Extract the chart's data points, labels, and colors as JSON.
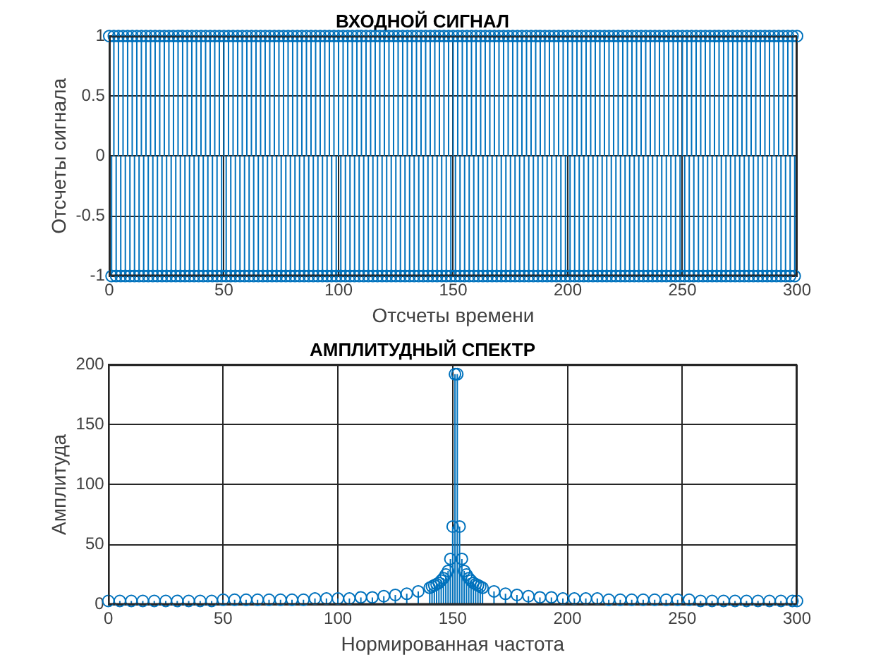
{
  "chart_data": [
    {
      "type": "lollipop",
      "title": "ВХОДНОЙ СИГНАЛ",
      "xlabel": "Отсчеты времени",
      "ylabel": "Отсчеты сигнала",
      "color": "#0072bd",
      "marker": "circle",
      "grid": true,
      "legend": false,
      "xlim": [
        0,
        300
      ],
      "xticks": [
        0,
        50,
        100,
        150,
        200,
        250,
        300
      ],
      "ylim": [
        -1,
        1
      ],
      "yticks": [
        -1,
        {
          "value": -0.5,
          "label": "-0.5"
        },
        0,
        0.5,
        1
      ],
      "x": [
        0,
        1,
        2,
        3,
        4,
        5,
        6,
        7,
        8,
        9,
        10,
        11,
        12,
        13,
        14,
        15,
        16,
        17,
        18,
        19,
        20,
        21,
        22,
        23,
        24,
        25,
        26,
        27,
        28,
        29,
        30,
        31,
        32,
        33,
        34,
        35,
        36,
        37,
        38,
        39,
        40,
        41,
        42,
        43,
        44,
        45,
        46,
        47,
        48,
        49,
        50,
        51,
        52,
        53,
        54,
        55,
        56,
        57,
        58,
        59,
        60,
        61,
        62,
        63,
        64,
        65,
        66,
        67,
        68,
        69,
        70,
        71,
        72,
        73,
        74,
        75,
        76,
        77,
        78,
        79,
        80,
        81,
        82,
        83,
        84,
        85,
        86,
        87,
        88,
        89,
        90,
        91,
        92,
        93,
        94,
        95,
        96,
        97,
        98,
        99,
        100,
        101,
        102,
        103,
        104,
        105,
        106,
        107,
        108,
        109,
        110,
        111,
        112,
        113,
        114,
        115,
        116,
        117,
        118,
        119,
        120,
        121,
        122,
        123,
        124,
        125,
        126,
        127,
        128,
        129,
        130,
        131,
        132,
        133,
        134,
        135,
        136,
        137,
        138,
        139,
        140,
        141,
        142,
        143,
        144,
        145,
        146,
        147,
        148,
        149,
        150,
        151,
        152,
        153,
        154,
        155,
        156,
        157,
        158,
        159,
        160,
        161,
        162,
        163,
        164,
        165,
        166,
        167,
        168,
        169,
        170,
        171,
        172,
        173,
        174,
        175,
        176,
        177,
        178,
        179,
        180,
        181,
        182,
        183,
        184,
        185,
        186,
        187,
        188,
        189,
        190,
        191,
        192,
        193,
        194,
        195,
        196,
        197,
        198,
        199,
        200,
        201,
        202,
        203,
        204,
        205,
        206,
        207,
        208,
        209,
        210,
        211,
        212,
        213,
        214,
        215,
        216,
        217,
        218,
        219,
        220,
        221,
        222,
        223,
        224,
        225,
        226,
        227,
        228,
        229,
        230,
        231,
        232,
        233,
        234,
        235,
        236,
        237,
        238,
        239,
        240,
        241,
        242,
        243,
        244,
        245,
        246,
        247,
        248,
        249,
        250,
        251,
        252,
        253,
        254,
        255,
        256,
        257,
        258,
        259,
        260,
        261,
        262,
        263,
        264,
        265,
        266,
        267,
        268,
        269,
        270,
        271,
        272,
        273,
        274,
        275,
        276,
        277,
        278,
        279,
        280,
        281,
        282,
        283,
        284,
        285,
        286,
        287,
        288,
        289,
        290,
        291,
        292,
        293,
        294,
        295,
        296,
        297,
        298,
        299,
        300
      ],
      "values": [
        1,
        -1,
        1,
        -1,
        1,
        -1,
        1,
        -1,
        1,
        -1,
        1,
        -1,
        1,
        -1,
        1,
        -1,
        1,
        -1,
        1,
        -1,
        1,
        -1,
        1,
        -1,
        1,
        -1,
        1,
        -1,
        1,
        -1,
        1,
        -1,
        1,
        -1,
        1,
        -1,
        1,
        -1,
        1,
        -1,
        1,
        -1,
        1,
        -1,
        1,
        -1,
        1,
        -1,
        1,
        -1,
        1,
        -1,
        1,
        -1,
        1,
        -1,
        1,
        -1,
        1,
        -1,
        1,
        -1,
        1,
        -1,
        1,
        -1,
        1,
        -1,
        1,
        -1,
        1,
        -1,
        1,
        -1,
        1,
        -1,
        1,
        -1,
        1,
        -1,
        1,
        -1,
        1,
        -1,
        1,
        -1,
        1,
        -1,
        1,
        -1,
        1,
        -1,
        1,
        -1,
        1,
        -1,
        1,
        -1,
        1,
        -1,
        1,
        -1,
        1,
        -1,
        1,
        -1,
        1,
        -1,
        1,
        -1,
        1,
        -1,
        1,
        -1,
        1,
        -1,
        1,
        -1,
        1,
        -1,
        1,
        -1,
        1,
        -1,
        1,
        -1,
        1,
        -1,
        1,
        -1,
        1,
        -1,
        1,
        -1,
        1,
        -1,
        1,
        -1,
        1,
        -1,
        1,
        -1,
        1,
        -1,
        1,
        -1,
        1,
        -1,
        1,
        -1,
        1,
        -1,
        1,
        -1,
        1,
        -1,
        1,
        -1,
        1,
        -1,
        1,
        -1,
        1,
        -1,
        1,
        -1,
        1,
        -1,
        1,
        -1,
        1,
        -1,
        1,
        -1,
        1,
        -1,
        1,
        -1,
        1,
        -1,
        1,
        -1,
        1,
        -1,
        1,
        -1,
        1,
        -1,
        1,
        -1,
        1,
        -1,
        1,
        -1,
        1,
        -1,
        1,
        -1,
        1,
        -1,
        1,
        -1,
        1,
        -1,
        1,
        -1,
        1,
        -1,
        1,
        -1,
        1,
        -1,
        1,
        -1,
        1,
        -1,
        1,
        -1,
        1,
        -1,
        1,
        -1,
        1,
        -1,
        1,
        -1,
        1,
        -1,
        1,
        -1,
        1,
        -1,
        1,
        -1,
        1,
        -1,
        1,
        -1,
        1,
        -1,
        1,
        -1,
        1,
        -1,
        1,
        -1,
        1,
        -1,
        1,
        -1,
        1,
        -1,
        1,
        -1,
        1,
        -1,
        1,
        -1,
        1,
        -1,
        1,
        -1,
        1,
        -1,
        1,
        -1,
        1,
        -1,
        1,
        -1,
        1,
        -1,
        1,
        -1,
        1,
        -1,
        1,
        -1,
        1,
        -1,
        1,
        -1,
        1,
        -1,
        1,
        -1,
        1,
        -1,
        1,
        -1,
        1,
        -1,
        1,
        -1,
        1,
        -1,
        1,
        -1,
        1,
        -1,
        1
      ]
    },
    {
      "type": "lollipop",
      "title": "АМПЛИТУДНЫЙ СПЕКТР",
      "xlabel": "Нормированная частота",
      "ylabel": "Амплитуда",
      "color": "#0072bd",
      "marker": "circle",
      "grid": true,
      "legend": false,
      "xlim": [
        0,
        300
      ],
      "xticks": [
        0,
        50,
        100,
        150,
        200,
        250,
        300
      ],
      "ylim": [
        0,
        200
      ],
      "yticks": [
        0,
        50,
        100,
        150,
        200
      ],
      "x": [
        0,
        5,
        10,
        15,
        20,
        25,
        30,
        35,
        40,
        45,
        50,
        55,
        60,
        65,
        70,
        75,
        80,
        85,
        90,
        95,
        100,
        105,
        110,
        115,
        120,
        125,
        130,
        135,
        140,
        141,
        142,
        143,
        144,
        145,
        146,
        147,
        148,
        149,
        150,
        151,
        152,
        153,
        154,
        155,
        156,
        157,
        158,
        159,
        160,
        161,
        162,
        163,
        168,
        173,
        178,
        183,
        188,
        193,
        198,
        203,
        208,
        213,
        218,
        223,
        228,
        233,
        238,
        243,
        248,
        253,
        258,
        263,
        268,
        273,
        278,
        283,
        288,
        293,
        298,
        300
      ],
      "values": [
        3,
        3,
        3,
        3,
        3,
        3,
        3,
        3,
        3,
        3,
        4,
        4,
        4,
        4,
        4,
        4,
        4,
        4,
        5,
        5,
        5,
        5,
        6,
        6,
        7,
        8,
        9,
        11,
        14,
        15,
        16,
        17,
        18,
        20,
        22,
        25,
        28,
        38,
        65,
        192,
        192,
        65,
        38,
        28,
        25,
        22,
        20,
        18,
        17,
        16,
        15,
        14,
        11,
        9,
        8,
        7,
        6,
        6,
        5,
        5,
        5,
        5,
        4,
        4,
        4,
        4,
        4,
        4,
        4,
        4,
        3,
        3,
        3,
        3,
        3,
        3,
        3,
        3,
        3,
        3
      ]
    }
  ]
}
